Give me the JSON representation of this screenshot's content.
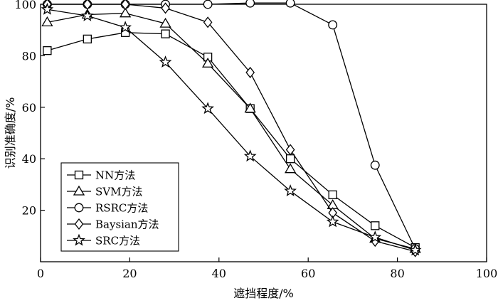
{
  "chart_data": {
    "type": "line",
    "xlabel": "遮挡程度/%",
    "ylabel": "识别准确度/%",
    "xlim": [
      0,
      100
    ],
    "ylim": [
      0,
      100
    ],
    "x_ticks": [
      "0",
      "20",
      "40",
      "60",
      "80",
      "100"
    ],
    "y_ticks": [
      "20",
      "40",
      "60",
      "80",
      "100"
    ],
    "grid": false,
    "legend_position": "bottom-left",
    "series": [
      {
        "name": "NN方法",
        "marker": "square",
        "x": [
          1.5,
          10.5,
          19,
          28,
          37.5,
          47,
          56,
          65.5,
          75,
          84
        ],
        "y": [
          82,
          86.5,
          89,
          88.5,
          79.5,
          59.5,
          40,
          26,
          14,
          5.5
        ]
      },
      {
        "name": "SVM方法",
        "marker": "triangle",
        "x": [
          1.5,
          10.5,
          19,
          28,
          37.5,
          47,
          56,
          65.5,
          75,
          84
        ],
        "y": [
          93,
          96,
          96.5,
          92.5,
          77,
          59.5,
          36,
          22,
          9,
          5
        ]
      },
      {
        "name": "RSRC方法",
        "marker": "circle",
        "x": [
          1.5,
          10.5,
          19,
          28,
          37.5,
          47,
          56,
          65.5,
          75,
          84
        ],
        "y": [
          100,
          100,
          100,
          100,
          100,
          100.5,
          100.5,
          92,
          37.5,
          5
        ]
      },
      {
        "name": "Baysian方法",
        "marker": "diamond",
        "x": [
          1.5,
          10.5,
          19,
          28,
          37.5,
          47,
          56,
          65.5,
          75,
          84
        ],
        "y": [
          100,
          100,
          100,
          98.5,
          93,
          73.5,
          43.5,
          19,
          8,
          4
        ]
      },
      {
        "name": "SRC方法",
        "marker": "star",
        "x": [
          1.5,
          10.5,
          19,
          28,
          37.5,
          47,
          56,
          65.5,
          75,
          84
        ],
        "y": [
          98,
          95.5,
          91,
          77.5,
          59.5,
          41,
          27.5,
          15.5,
          9.5,
          4.5
        ]
      }
    ]
  }
}
